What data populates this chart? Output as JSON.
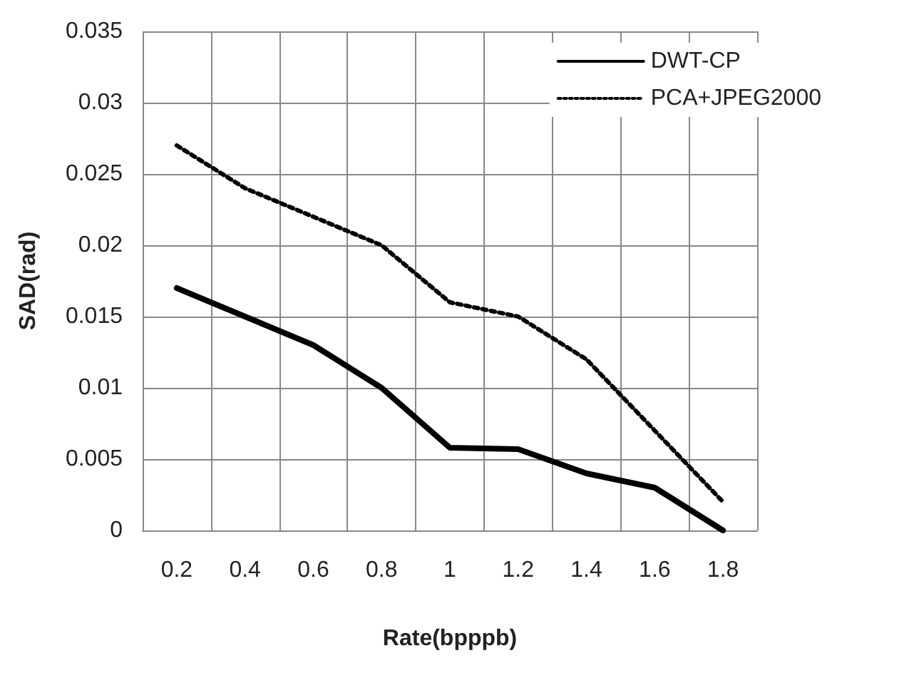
{
  "chart_data": {
    "type": "line",
    "xlabel": "Rate(bpppb)",
    "ylabel": "SAD(rad)",
    "categories": [
      "0.2",
      "0.4",
      "0.6",
      "0.8",
      "1",
      "1.2",
      "1.4",
      "1.6",
      "1.8"
    ],
    "series": [
      {
        "name": "DWT-CP",
        "color": "#000000",
        "line_style": "solid",
        "values": [
          0.017,
          0.015,
          0.013,
          0.01,
          0.0058,
          0.0057,
          0.004,
          0.003,
          0
        ]
      },
      {
        "name": "PCA+JPEG2000",
        "color": "#000000",
        "line_style": "dotted",
        "values": [
          0.027,
          0.024,
          0.022,
          0.02,
          0.016,
          0.015,
          0.012,
          0.007,
          0.002
        ]
      }
    ],
    "ylim": [
      0,
      0.035
    ],
    "yticks": [
      0,
      0.005,
      0.01,
      0.015,
      0.02,
      0.025,
      0.03,
      0.035
    ],
    "grid": true,
    "legend": "top right",
    "marker": "none"
  }
}
